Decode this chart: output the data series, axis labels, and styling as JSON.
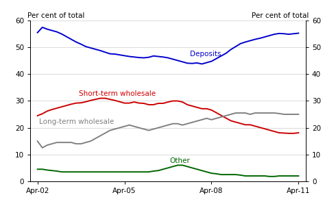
{
  "ylabel_left": "Per cent of total",
  "ylabel_right": "Per cent of total",
  "ylim": [
    0,
    60
  ],
  "yticks": [
    0,
    10,
    20,
    30,
    40,
    50,
    60
  ],
  "xtick_labels": [
    "Apr-02",
    "Apr-05",
    "Apr-08",
    "Apr-11"
  ],
  "line_colors": {
    "Deposits": "#0000cc",
    "Short-term wholesale": "#cc0000",
    "Long-term wholesale": "#808080",
    "Other": "#006600"
  },
  "deposits": [
    55.5,
    57.5,
    56.8,
    56.3,
    55.8,
    55.0,
    54.0,
    53.0,
    52.0,
    51.2,
    50.3,
    49.8,
    49.3,
    48.8,
    48.2,
    47.6,
    47.5,
    47.2,
    46.9,
    46.6,
    46.4,
    46.2,
    46.1,
    46.3,
    46.8,
    46.6,
    46.4,
    46.1,
    45.6,
    45.1,
    44.6,
    44.1,
    44.0,
    44.2,
    43.8,
    44.3,
    44.8,
    45.8,
    46.8,
    47.8,
    49.2,
    50.3,
    51.4,
    52.0,
    52.5,
    53.0,
    53.4,
    53.9,
    54.4,
    54.9,
    55.2,
    55.1,
    54.9,
    55.1,
    55.3
  ],
  "short_term": [
    24.5,
    25.2,
    26.2,
    26.8,
    27.3,
    27.8,
    28.3,
    28.8,
    29.2,
    29.3,
    29.7,
    30.2,
    30.6,
    31.0,
    31.0,
    30.6,
    30.2,
    29.7,
    29.2,
    29.2,
    29.6,
    29.2,
    29.1,
    28.6,
    28.6,
    29.1,
    29.1,
    29.6,
    30.0,
    30.0,
    29.6,
    28.6,
    28.1,
    27.6,
    27.1,
    27.1,
    26.6,
    25.6,
    24.6,
    23.6,
    22.6,
    22.1,
    21.6,
    21.1,
    21.1,
    20.6,
    20.1,
    19.6,
    19.1,
    18.6,
    18.1,
    18.0,
    17.9,
    17.9,
    18.1
  ],
  "long_term": [
    15.0,
    12.5,
    13.5,
    14.0,
    14.5,
    14.5,
    14.5,
    14.5,
    14.0,
    14.0,
    14.5,
    15.0,
    16.0,
    17.0,
    18.0,
    19.0,
    19.5,
    20.0,
    20.5,
    21.0,
    20.5,
    20.0,
    19.5,
    19.0,
    19.5,
    20.0,
    20.5,
    21.0,
    21.5,
    21.5,
    21.0,
    21.5,
    22.0,
    22.5,
    23.0,
    23.5,
    23.0,
    23.5,
    24.0,
    24.5,
    25.0,
    25.5,
    25.5,
    25.5,
    25.0,
    25.5,
    25.5,
    25.5,
    25.5,
    25.5,
    25.3,
    25.0,
    25.0,
    25.0,
    25.0
  ],
  "other": [
    4.5,
    4.5,
    4.2,
    4.0,
    3.8,
    3.5,
    3.5,
    3.5,
    3.5,
    3.5,
    3.5,
    3.5,
    3.5,
    3.5,
    3.5,
    3.5,
    3.5,
    3.5,
    3.5,
    3.5,
    3.5,
    3.5,
    3.5,
    3.5,
    3.8,
    4.0,
    4.5,
    5.0,
    5.5,
    6.0,
    6.0,
    5.5,
    5.0,
    4.5,
    4.0,
    3.5,
    3.0,
    2.8,
    2.5,
    2.5,
    2.5,
    2.5,
    2.3,
    2.0,
    2.0,
    2.0,
    2.0,
    2.0,
    1.8,
    1.8,
    2.0,
    2.0,
    2.0,
    2.0,
    2.0
  ]
}
